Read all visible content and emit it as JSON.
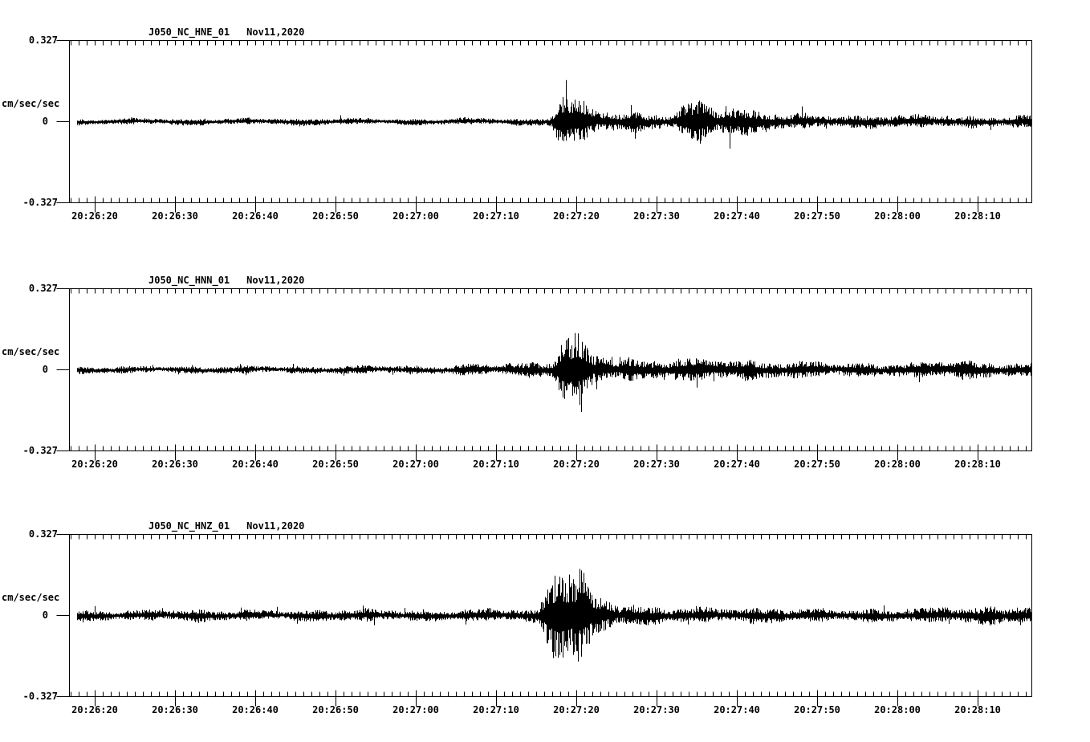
{
  "window": {
    "background": "#ffffff",
    "foreground": "#000000"
  },
  "axes": {
    "y_max_label": "0.327",
    "y_zero_label": "0",
    "y_min_label": "-0.327",
    "y_units": "cm/sec/sec"
  },
  "chart_data": [
    {
      "type": "line",
      "kind": "seismogram-trace",
      "title": "J050_NC_HNE_01",
      "date": "Nov11,2020",
      "ylabel": "cm/sec/sec",
      "ylim": [
        -0.327,
        0.327
      ],
      "yticks": [
        0.327,
        0,
        -0.327
      ],
      "x_tick_labels": [
        "20:26:20",
        "20:26:30",
        "20:26:40",
        "20:26:50",
        "20:27:00",
        "20:27:10",
        "20:27:20",
        "20:27:30",
        "20:27:40",
        "20:27:50",
        "20:28:00",
        "20:28:10"
      ],
      "x_first_tick_s": 3.2,
      "x_tick_step_s": 10,
      "x_minor_step_s": 1,
      "duration_s": 120,
      "seed": 101,
      "spike_prob": 0.012,
      "amplitude_envelope": [
        [
          0,
          0.012
        ],
        [
          15,
          0.011
        ],
        [
          25,
          0.013
        ],
        [
          40,
          0.011
        ],
        [
          55,
          0.012
        ],
        [
          58,
          0.013
        ],
        [
          59.5,
          0.016
        ],
        [
          60.3,
          0.05
        ],
        [
          61.0,
          0.1
        ],
        [
          61.8,
          0.115
        ],
        [
          62.6,
          0.1
        ],
        [
          63.5,
          0.08
        ],
        [
          64.5,
          0.055
        ],
        [
          66,
          0.042
        ],
        [
          68,
          0.036
        ],
        [
          71,
          0.032
        ],
        [
          74,
          0.03
        ],
        [
          75.5,
          0.034
        ],
        [
          77,
          0.07
        ],
        [
          78.5,
          0.085
        ],
        [
          79.5,
          0.065
        ],
        [
          81,
          0.055
        ],
        [
          83,
          0.05
        ],
        [
          85,
          0.042
        ],
        [
          87,
          0.036
        ],
        [
          90,
          0.03
        ],
        [
          93,
          0.026
        ],
        [
          97,
          0.024
        ],
        [
          101,
          0.025
        ],
        [
          105,
          0.022
        ],
        [
          109,
          0.023
        ],
        [
          113,
          0.021
        ],
        [
          116,
          0.02
        ],
        [
          120,
          0.02
        ]
      ]
    },
    {
      "type": "line",
      "kind": "seismogram-trace",
      "title": "J050_NC_HNN_01",
      "date": "Nov11,2020",
      "ylabel": "cm/sec/sec",
      "ylim": [
        -0.327,
        0.327
      ],
      "yticks": [
        0.327,
        0,
        -0.327
      ],
      "x_tick_labels": [
        "20:26:20",
        "20:26:30",
        "20:26:40",
        "20:26:50",
        "20:27:00",
        "20:27:10",
        "20:27:20",
        "20:27:30",
        "20:27:40",
        "20:27:50",
        "20:28:00",
        "20:28:10"
      ],
      "x_first_tick_s": 3.2,
      "x_tick_step_s": 10,
      "x_minor_step_s": 1,
      "duration_s": 120,
      "seed": 202,
      "spike_prob": 0.012,
      "amplitude_envelope": [
        [
          0,
          0.013
        ],
        [
          20,
          0.013
        ],
        [
          35,
          0.014
        ],
        [
          45,
          0.016
        ],
        [
          50,
          0.022
        ],
        [
          53,
          0.02
        ],
        [
          56,
          0.024
        ],
        [
          58.5,
          0.028
        ],
        [
          60.2,
          0.04
        ],
        [
          61.0,
          0.09
        ],
        [
          61.6,
          0.145
        ],
        [
          62.3,
          0.16
        ],
        [
          63.2,
          0.13
        ],
        [
          64.2,
          0.1
        ],
        [
          65.2,
          0.07
        ],
        [
          66.5,
          0.052
        ],
        [
          68,
          0.044
        ],
        [
          70,
          0.038
        ],
        [
          72.5,
          0.034
        ],
        [
          75,
          0.036
        ],
        [
          76.5,
          0.045
        ],
        [
          78,
          0.042
        ],
        [
          79.5,
          0.05
        ],
        [
          81,
          0.044
        ],
        [
          83,
          0.038
        ],
        [
          85.5,
          0.034
        ],
        [
          88,
          0.03
        ],
        [
          91,
          0.028
        ],
        [
          95,
          0.026
        ],
        [
          100,
          0.026
        ],
        [
          104,
          0.024
        ],
        [
          107,
          0.027
        ],
        [
          109.5,
          0.034
        ],
        [
          111.5,
          0.036
        ],
        [
          113.5,
          0.03
        ],
        [
          116,
          0.027
        ],
        [
          120,
          0.027
        ]
      ]
    },
    {
      "type": "line",
      "kind": "seismogram-trace",
      "title": "J050_NC_HNZ_01",
      "date": "Nov11,2020",
      "ylabel": "cm/sec/sec",
      "ylim": [
        -0.327,
        0.327
      ],
      "yticks": [
        0.327,
        0,
        -0.327
      ],
      "x_tick_labels": [
        "20:26:20",
        "20:26:30",
        "20:26:40",
        "20:26:50",
        "20:27:00",
        "20:27:10",
        "20:27:20",
        "20:27:30",
        "20:27:40",
        "20:27:50",
        "20:28:00",
        "20:28:10"
      ],
      "x_first_tick_s": 3.2,
      "x_tick_step_s": 10,
      "x_minor_step_s": 1,
      "duration_s": 120,
      "seed": 303,
      "spike_prob": 0.018,
      "amplitude_envelope": [
        [
          0,
          0.02
        ],
        [
          20,
          0.02
        ],
        [
          40,
          0.021
        ],
        [
          50,
          0.021
        ],
        [
          56,
          0.022
        ],
        [
          58.3,
          0.024
        ],
        [
          59.0,
          0.06
        ],
        [
          59.6,
          0.14
        ],
        [
          60.2,
          0.21
        ],
        [
          61.0,
          0.25
        ],
        [
          61.8,
          0.23
        ],
        [
          62.5,
          0.26
        ],
        [
          63.2,
          0.21
        ],
        [
          64.0,
          0.15
        ],
        [
          64.8,
          0.105
        ],
        [
          65.8,
          0.072
        ],
        [
          67,
          0.052
        ],
        [
          68.5,
          0.042
        ],
        [
          70,
          0.036
        ],
        [
          72,
          0.031
        ],
        [
          74.5,
          0.028
        ],
        [
          77,
          0.03
        ],
        [
          79,
          0.029
        ],
        [
          82,
          0.027
        ],
        [
          86,
          0.026
        ],
        [
          90,
          0.025
        ],
        [
          95,
          0.024
        ],
        [
          100,
          0.024
        ],
        [
          104,
          0.024
        ],
        [
          108,
          0.026
        ],
        [
          111,
          0.032
        ],
        [
          114,
          0.035
        ],
        [
          117,
          0.037
        ],
        [
          120,
          0.035
        ]
      ]
    }
  ]
}
